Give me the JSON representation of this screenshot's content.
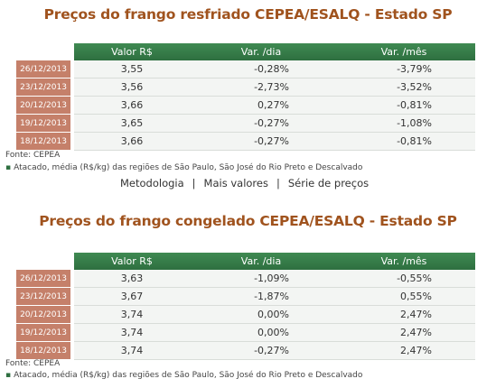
{
  "tables": [
    {
      "title": "Preços do frango resfriado CEPEA/ESALQ - Estado SP",
      "headers": [
        "Valor R$",
        "Var. /dia",
        "Var. /mês"
      ],
      "rows": [
        {
          "date": "26/12/2013",
          "value": "3,55",
          "day": "-0,28%",
          "month": "-3,79%"
        },
        {
          "date": "23/12/2013",
          "value": "3,56",
          "day": "-2,73%",
          "month": "-3,52%"
        },
        {
          "date": "20/12/2013",
          "value": "3,66",
          "day": "0,27%",
          "month": "-0,81%"
        },
        {
          "date": "19/12/2013",
          "value": "3,65",
          "day": "-0,27%",
          "month": "-1,08%"
        },
        {
          "date": "18/12/2013",
          "value": "3,66",
          "day": "-0,27%",
          "month": "-0,81%"
        }
      ],
      "source": "Fonte: CEPEA",
      "note": "Atacado, média (R$/kg) das regiões de São Paulo, São José do Rio Preto e Descalvado"
    },
    {
      "title": "Preços do frango congelado CEPEA/ESALQ - Estado SP",
      "headers": [
        "Valor R$",
        "Var. /dia",
        "Var. /mês"
      ],
      "rows": [
        {
          "date": "26/12/2013",
          "value": "3,63",
          "day": "-1,09%",
          "month": "-0,55%"
        },
        {
          "date": "23/12/2013",
          "value": "3,67",
          "day": "-1,87%",
          "month": "0,55%"
        },
        {
          "date": "20/12/2013",
          "value": "3,74",
          "day": "0,00%",
          "month": "2,47%"
        },
        {
          "date": "19/12/2013",
          "value": "3,74",
          "day": "0,00%",
          "month": "2,47%"
        },
        {
          "date": "18/12/2013",
          "value": "3,74",
          "day": "-0,27%",
          "month": "2,47%"
        }
      ],
      "source": "Fonte: CEPEA",
      "note": "Atacado, média (R$/kg) das regiões de São Paulo, São José do Rio Preto e Descalvado"
    }
  ],
  "links": {
    "metodologia": "Metodologia",
    "mais_valores": "Mais valores",
    "serie": "Série de preços",
    "separator": "|"
  },
  "colors": {
    "title": "#a0531e",
    "header_green": "#2e6f40",
    "date_badge": "#c5806a",
    "row_bg": "#f3f5f3"
  }
}
